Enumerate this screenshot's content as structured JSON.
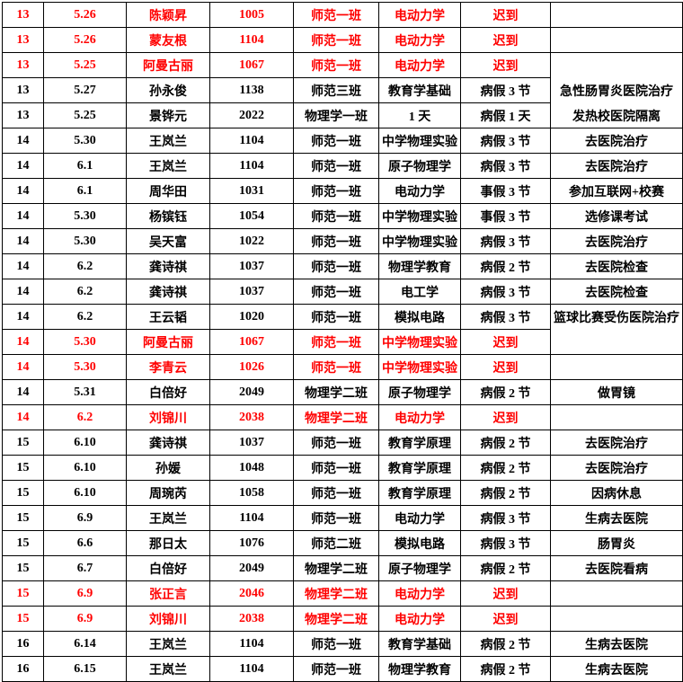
{
  "page": {
    "background": "#ffffff"
  },
  "table": {
    "border_color": "#000000",
    "text_color": "#000000",
    "late_color": "#ff0000",
    "column_keys": [
      "week",
      "date",
      "name",
      "student_id",
      "class",
      "course",
      "leave",
      "remark"
    ],
    "rows": [
      {
        "week": "13",
        "date": "5.26",
        "name": "陈颖昇",
        "student_id": "1005",
        "class": "师范一班",
        "course": "电动力学",
        "leave": "迟到",
        "remark": "",
        "late": true,
        "remark_merge_down": false
      },
      {
        "week": "13",
        "date": "5.26",
        "name": "蒙友根",
        "student_id": "1104",
        "class": "师范一班",
        "course": "电动力学",
        "leave": "迟到",
        "remark": "",
        "late": true,
        "remark_merge_down": false
      },
      {
        "week": "13",
        "date": "5.25",
        "name": "阿曼古丽",
        "student_id": "1067",
        "class": "师范一班",
        "course": "电动力学",
        "leave": "迟到",
        "remark": "",
        "late": true,
        "remark_merge_down": true
      },
      {
        "week": "13",
        "date": "5.27",
        "name": "孙永俊",
        "student_id": "1138",
        "class": "师范三班",
        "course": "教育学基础",
        "leave": "病假 3 节",
        "remark": "急性肠胃炎医院治疗",
        "late": false,
        "remark_merge_down": true
      },
      {
        "week": "13",
        "date": "5.25",
        "name": "景铧元",
        "student_id": "2022",
        "class": "物理学一班",
        "course": "1 天",
        "leave": "病假 1 天",
        "remark": "发热校医院隔离",
        "late": false,
        "remark_merge_down": false
      },
      {
        "week": "14",
        "date": "5.30",
        "name": "王岚兰",
        "student_id": "1104",
        "class": "师范一班",
        "course": "中学物理实验",
        "leave": "病假 3 节",
        "remark": "去医院治疗",
        "late": false,
        "remark_merge_down": false
      },
      {
        "week": "14",
        "date": "6.1",
        "name": "王岚兰",
        "student_id": "1104",
        "class": "师范一班",
        "course": "原子物理学",
        "leave": "病假 3 节",
        "remark": "去医院治疗",
        "late": false,
        "remark_merge_down": false
      },
      {
        "week": "14",
        "date": "6.1",
        "name": "周华田",
        "student_id": "1031",
        "class": "师范一班",
        "course": "电动力学",
        "leave": "事假 3 节",
        "remark": "参加互联网+校赛",
        "late": false,
        "remark_merge_down": false
      },
      {
        "week": "14",
        "date": "5.30",
        "name": "杨镔钰",
        "student_id": "1054",
        "class": "师范一班",
        "course": "中学物理实验",
        "leave": "事假 3 节",
        "remark": "选修课考试",
        "late": false,
        "remark_merge_down": false
      },
      {
        "week": "14",
        "date": "5.30",
        "name": "吴天富",
        "student_id": "1022",
        "class": "师范一班",
        "course": "中学物理实验",
        "leave": "病假 3 节",
        "remark": "去医院治疗",
        "late": false,
        "remark_merge_down": false
      },
      {
        "week": "14",
        "date": "6.2",
        "name": "龚诗祺",
        "student_id": "1037",
        "class": "师范一班",
        "course": "物理学教育",
        "leave": "病假 2 节",
        "remark": "去医院检查",
        "late": false,
        "remark_merge_down": false
      },
      {
        "week": "14",
        "date": "6.2",
        "name": "龚诗祺",
        "student_id": "1037",
        "class": "师范一班",
        "course": "电工学",
        "leave": "病假 3 节",
        "remark": "去医院检查",
        "late": false,
        "remark_merge_down": false
      },
      {
        "week": "14",
        "date": "6.2",
        "name": "王云韬",
        "student_id": "1020",
        "class": "师范一班",
        "course": "模拟电路",
        "leave": "病假 3 节",
        "remark": "篮球比赛受伤医院治疗",
        "late": false,
        "remark_merge_down": true
      },
      {
        "week": "14",
        "date": "5.30",
        "name": "阿曼古丽",
        "student_id": "1067",
        "class": "师范一班",
        "course": "中学物理实验",
        "leave": "迟到",
        "remark": "",
        "late": true,
        "remark_merge_down": false
      },
      {
        "week": "14",
        "date": "5.30",
        "name": "李青云",
        "student_id": "1026",
        "class": "师范一班",
        "course": "中学物理实验",
        "leave": "迟到",
        "remark": "",
        "late": true,
        "remark_merge_down": false
      },
      {
        "week": "14",
        "date": "5.31",
        "name": "白倍好",
        "student_id": "2049",
        "class": "物理学二班",
        "course": "原子物理学",
        "leave": "病假 2 节",
        "remark": "做胃镜",
        "late": false,
        "remark_merge_down": false
      },
      {
        "week": "14",
        "date": "6.2",
        "name": "刘锦川",
        "student_id": "2038",
        "class": "物理学二班",
        "course": "电动力学",
        "leave": "迟到",
        "remark": "",
        "late": true,
        "remark_merge_down": false
      },
      {
        "week": "15",
        "date": "6.10",
        "name": "龚诗祺",
        "student_id": "1037",
        "class": "师范一班",
        "course": "教育学原理",
        "leave": "病假 2 节",
        "remark": "去医院治疗",
        "late": false,
        "remark_merge_down": false
      },
      {
        "week": "15",
        "date": "6.10",
        "name": "孙媛",
        "student_id": "1048",
        "class": "师范一班",
        "course": "教育学原理",
        "leave": "病假 2 节",
        "remark": "去医院治疗",
        "late": false,
        "remark_merge_down": false
      },
      {
        "week": "15",
        "date": "6.10",
        "name": "周琬芮",
        "student_id": "1058",
        "class": "师范一班",
        "course": "教育学原理",
        "leave": "病假 2 节",
        "remark": "因病休息",
        "late": false,
        "remark_merge_down": false
      },
      {
        "week": "15",
        "date": "6.9",
        "name": "王岚兰",
        "student_id": "1104",
        "class": "师范一班",
        "course": "电动力学",
        "leave": "病假 3 节",
        "remark": "生病去医院",
        "late": false,
        "remark_merge_down": false
      },
      {
        "week": "15",
        "date": "6.6",
        "name": "那日太",
        "student_id": "1076",
        "class": "师范二班",
        "course": "模拟电路",
        "leave": "病假 3 节",
        "remark": "肠胃炎",
        "late": false,
        "remark_merge_down": false
      },
      {
        "week": "15",
        "date": "6.7",
        "name": "白倍好",
        "student_id": "2049",
        "class": "物理学二班",
        "course": "原子物理学",
        "leave": "病假 2 节",
        "remark": "去医院看病",
        "late": false,
        "remark_merge_down": false
      },
      {
        "week": "15",
        "date": "6.9",
        "name": "张正言",
        "student_id": "2046",
        "class": "物理学二班",
        "course": "电动力学",
        "leave": "迟到",
        "remark": "",
        "late": true,
        "remark_merge_down": false
      },
      {
        "week": "15",
        "date": "6.9",
        "name": "刘锦川",
        "student_id": "2038",
        "class": "物理学二班",
        "course": "电动力学",
        "leave": "迟到",
        "remark": "",
        "late": true,
        "remark_merge_down": false
      },
      {
        "week": "16",
        "date": "6.14",
        "name": "王岚兰",
        "student_id": "1104",
        "class": "师范一班",
        "course": "教育学基础",
        "leave": "病假 2 节",
        "remark": "生病去医院",
        "late": false,
        "remark_merge_down": false
      },
      {
        "week": "16",
        "date": "6.15",
        "name": "王岚兰",
        "student_id": "1104",
        "class": "师范一班",
        "course": "物理学教育",
        "leave": "病假 2 节",
        "remark": "生病去医院",
        "late": false,
        "remark_merge_down": false
      }
    ]
  }
}
